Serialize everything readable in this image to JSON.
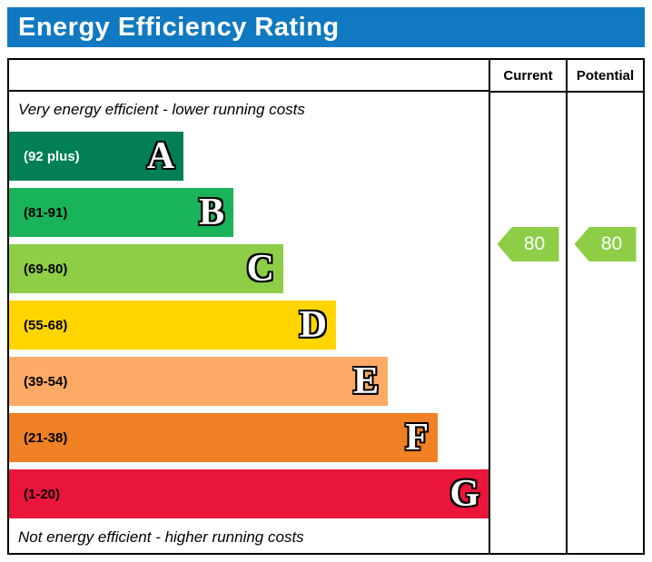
{
  "title": "Energy Efficiency Rating",
  "colors": {
    "header_bg": "#1079c1",
    "border": "#000000"
  },
  "chart_data": {
    "type": "bar",
    "title": "Energy Efficiency Rating",
    "top_note": "Very energy efficient - lower running costs",
    "bottom_note": "Not energy efficient - higher running costs",
    "categories": [
      "A",
      "B",
      "C",
      "D",
      "E",
      "F",
      "G"
    ],
    "bands": [
      {
        "letter": "A",
        "range_label": "(92 plus)",
        "color": "#008054"
      },
      {
        "letter": "B",
        "range_label": "(81-91)",
        "color": "#19b459"
      },
      {
        "letter": "C",
        "range_label": "(69-80)",
        "color": "#8dce46"
      },
      {
        "letter": "D",
        "range_label": "(55-68)",
        "color": "#ffd500"
      },
      {
        "letter": "E",
        "range_label": "(39-54)",
        "color": "#fcaa65"
      },
      {
        "letter": "F",
        "range_label": "(21-38)",
        "color": "#ef8023"
      },
      {
        "letter": "G",
        "range_label": "(1-20)",
        "color": "#e9153b"
      }
    ],
    "current": {
      "label": "Current",
      "value": 80,
      "band": "C",
      "arrow_color": "#8dce46"
    },
    "potential": {
      "label": "Potential",
      "value": 80,
      "band": "C",
      "arrow_color": "#8dce46"
    }
  }
}
